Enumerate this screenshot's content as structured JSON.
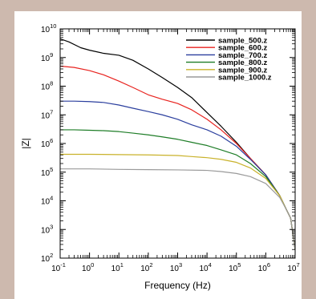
{
  "chart_data": {
    "type": "line",
    "xlabel": "Frequency (Hz)",
    "ylabel": "|Z|",
    "x_scale": "log",
    "y_scale": "log",
    "xlim": [
      0.1,
      10000000
    ],
    "ylim": [
      100,
      10000000000
    ],
    "x_ticks": [
      {
        "value": 0.1,
        "base": "10",
        "exp": "-1"
      },
      {
        "value": 1,
        "base": "10",
        "exp": "0"
      },
      {
        "value": 10,
        "base": "10",
        "exp": "1"
      },
      {
        "value": 100,
        "base": "10",
        "exp": "2"
      },
      {
        "value": 1000,
        "base": "10",
        "exp": "3"
      },
      {
        "value": 10000,
        "base": "10",
        "exp": "4"
      },
      {
        "value": 100000,
        "base": "10",
        "exp": "5"
      },
      {
        "value": 1000000,
        "base": "10",
        "exp": "6"
      },
      {
        "value": 10000000,
        "base": "10",
        "exp": "7"
      }
    ],
    "y_ticks": [
      {
        "value": 100,
        "base": "10",
        "exp": "2"
      },
      {
        "value": 1000,
        "base": "10",
        "exp": "3"
      },
      {
        "value": 10000,
        "base": "10",
        "exp": "4"
      },
      {
        "value": 100000,
        "base": "10",
        "exp": "5"
      },
      {
        "value": 1000000,
        "base": "10",
        "exp": "6"
      },
      {
        "value": 10000000,
        "base": "10",
        "exp": "7"
      },
      {
        "value": 100000000,
        "base": "10",
        "exp": "8"
      },
      {
        "value": 1000000000,
        "base": "10",
        "exp": "9"
      },
      {
        "value": 10000000000,
        "base": "10",
        "exp": "10"
      }
    ],
    "grid": false,
    "legend_position": "top-right",
    "series": [
      {
        "name": "sample_500.z",
        "color": "#000000",
        "points": [
          [
            0.1,
            4500000000.0
          ],
          [
            0.2,
            3500000000.0
          ],
          [
            0.5,
            2200000000.0
          ],
          [
            1,
            1800000000.0
          ],
          [
            3,
            1400000000.0
          ],
          [
            10,
            1200000000.0
          ],
          [
            30,
            800000000.0
          ],
          [
            100,
            400000000.0
          ],
          [
            300,
            200000000.0
          ],
          [
            1000,
            90000000.0
          ],
          [
            3000,
            40000000.0
          ],
          [
            10000,
            12000000.0
          ],
          [
            30000,
            4000000.0
          ],
          [
            100000,
            1100000.0
          ],
          [
            300000,
            300000.0
          ],
          [
            1000000,
            80000.0
          ],
          [
            3000000,
            15000.0
          ],
          [
            5000000,
            5000.0
          ],
          [
            7000000,
            2500.0
          ],
          [
            10000000,
            200
          ]
        ]
      },
      {
        "name": "sample_600.z",
        "color": "#e8231f",
        "points": [
          [
            0.1,
            500000000.0
          ],
          [
            0.3,
            450000000.0
          ],
          [
            1,
            350000000.0
          ],
          [
            3,
            250000000.0
          ],
          [
            10,
            150000000.0
          ],
          [
            30,
            90000000.0
          ],
          [
            100,
            50000000.0
          ],
          [
            300,
            35000000.0
          ],
          [
            1000,
            25000000.0
          ],
          [
            3000,
            15000000.0
          ],
          [
            10000,
            7000000.0
          ],
          [
            30000,
            3000000.0
          ],
          [
            100000,
            1000000.0
          ],
          [
            300000,
            300000.0
          ],
          [
            1000000,
            80000.0
          ],
          [
            3000000,
            15000.0
          ],
          [
            5000000,
            5000.0
          ],
          [
            7000000,
            2500.0
          ],
          [
            10000000,
            200
          ]
        ]
      },
      {
        "name": "sample_700.z",
        "color": "#2b3f9e",
        "points": [
          [
            0.1,
            30000000.0
          ],
          [
            0.3,
            30000000.0
          ],
          [
            1,
            29000000.0
          ],
          [
            3,
            27000000.0
          ],
          [
            10,
            22000000.0
          ],
          [
            30,
            17000000.0
          ],
          [
            100,
            13000000.0
          ],
          [
            300,
            10000000.0
          ],
          [
            1000,
            7000000.0
          ],
          [
            3000,
            4500000.0
          ],
          [
            10000,
            3000000.0
          ],
          [
            30000,
            1800000.0
          ],
          [
            100000,
            800000.0
          ],
          [
            300000,
            280000.0
          ],
          [
            1000000,
            80000.0
          ],
          [
            3000000,
            15000.0
          ],
          [
            5000000,
            5000.0
          ],
          [
            7000000,
            2500.0
          ],
          [
            10000000,
            200
          ]
        ]
      },
      {
        "name": "sample_800.z",
        "color": "#1e7d27",
        "points": [
          [
            0.1,
            3000000.0
          ],
          [
            0.3,
            3000000.0
          ],
          [
            1,
            2900000.0
          ],
          [
            3,
            2800000.0
          ],
          [
            10,
            2600000.0
          ],
          [
            30,
            2300000.0
          ],
          [
            100,
            2000000.0
          ],
          [
            300,
            1700000.0
          ],
          [
            1000,
            1400000.0
          ],
          [
            3000,
            1100000.0
          ],
          [
            10000,
            850000.0
          ],
          [
            30000,
            600000.0
          ],
          [
            100000,
            400000.0
          ],
          [
            300000,
            200000.0
          ],
          [
            1000000,
            70000.0
          ],
          [
            3000000,
            15000.0
          ],
          [
            5000000,
            5000.0
          ],
          [
            7000000,
            2500.0
          ],
          [
            10000000,
            200
          ]
        ]
      },
      {
        "name": "sample_900.z",
        "color": "#c9b22b",
        "points": [
          [
            0.1,
            420000.0
          ],
          [
            1,
            420000.0
          ],
          [
            10,
            410000.0
          ],
          [
            100,
            400000.0
          ],
          [
            1000,
            380000.0
          ],
          [
            3000,
            350000.0
          ],
          [
            10000,
            320000.0
          ],
          [
            30000,
            280000.0
          ],
          [
            100000,
            220000.0
          ],
          [
            300000,
            140000.0
          ],
          [
            1000000,
            60000.0
          ],
          [
            3000000,
            15000.0
          ],
          [
            5000000,
            5000.0
          ],
          [
            7000000,
            2500.0
          ],
          [
            10000000,
            200
          ]
        ]
      },
      {
        "name": "sample_1000.z",
        "color": "#9a9a9a",
        "points": [
          [
            0.1,
            130000.0
          ],
          [
            1,
            130000.0
          ],
          [
            10,
            125000.0
          ],
          [
            100,
            122000.0
          ],
          [
            1000,
            120000.0
          ],
          [
            10000,
            115000.0
          ],
          [
            30000,
            105000.0
          ],
          [
            100000,
            90000.0
          ],
          [
            300000,
            70000.0
          ],
          [
            1000000,
            40000.0
          ],
          [
            3000000,
            13000.0
          ],
          [
            5000000,
            5000.0
          ],
          [
            7000000,
            2500.0
          ],
          [
            10000000,
            200
          ]
        ]
      }
    ]
  }
}
